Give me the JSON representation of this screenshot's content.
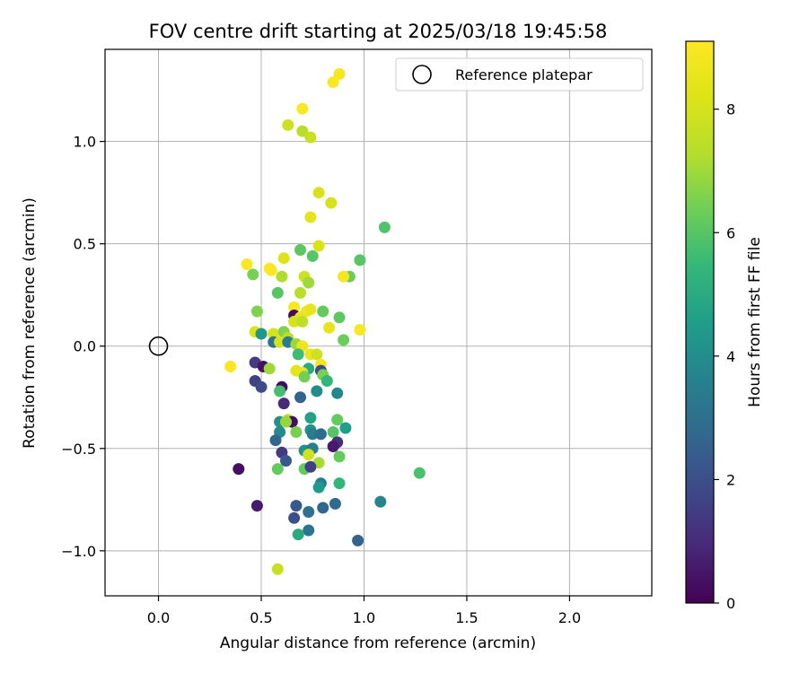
{
  "chart_data": {
    "type": "scatter",
    "title": "FOV centre drift starting at 2025/03/18 19:45:58",
    "xlabel": "Angular distance from reference (arcmin)",
    "ylabel": "Rotation from reference (arcmin)",
    "xlim": [
      -0.26,
      2.4
    ],
    "ylim": [
      -1.22,
      1.45
    ],
    "xticks": [
      0.0,
      0.5,
      1.0,
      1.5,
      2.0
    ],
    "xtick_labels": [
      "0.0",
      "0.5",
      "1.0",
      "1.5",
      "2.0"
    ],
    "yticks": [
      -1.0,
      -0.5,
      0.0,
      0.5,
      1.0
    ],
    "ytick_labels": [
      "−1.0",
      "−0.5",
      "0.0",
      "0.5",
      "1.0"
    ],
    "grid": true,
    "legend": {
      "position": "top-right",
      "entries": [
        "Reference platepar"
      ]
    },
    "reference_point": {
      "x": 0.0,
      "y": 0.0,
      "marker": "open-circle",
      "label": "Reference platepar"
    },
    "colorbar": {
      "label": "Hours from first FF file",
      "range": [
        0,
        9.1
      ],
      "ticks": [
        0,
        2,
        4,
        6,
        8
      ],
      "tick_labels": [
        "0",
        "2",
        "4",
        "6",
        "8"
      ],
      "colormap": "viridis"
    },
    "points": [
      {
        "x": 0.88,
        "y": 1.33,
        "c": 8.9
      },
      {
        "x": 0.85,
        "y": 1.29,
        "c": 9.0
      },
      {
        "x": 0.7,
        "y": 1.16,
        "c": 9.0
      },
      {
        "x": 0.63,
        "y": 1.08,
        "c": 7.8
      },
      {
        "x": 0.7,
        "y": 1.05,
        "c": 7.3
      },
      {
        "x": 0.74,
        "y": 1.02,
        "c": 7.7
      },
      {
        "x": 0.78,
        "y": 0.75,
        "c": 8.0
      },
      {
        "x": 0.84,
        "y": 0.7,
        "c": 8.0
      },
      {
        "x": 0.74,
        "y": 0.63,
        "c": 8.4
      },
      {
        "x": 1.1,
        "y": 0.58,
        "c": 5.9
      },
      {
        "x": 0.78,
        "y": 0.49,
        "c": 8.1
      },
      {
        "x": 0.69,
        "y": 0.47,
        "c": 6.1
      },
      {
        "x": 0.75,
        "y": 0.44,
        "c": 6.0
      },
      {
        "x": 0.61,
        "y": 0.43,
        "c": 8.2
      },
      {
        "x": 0.98,
        "y": 0.42,
        "c": 6.0
      },
      {
        "x": 0.43,
        "y": 0.4,
        "c": 9.0
      },
      {
        "x": 0.54,
        "y": 0.38,
        "c": 9.0
      },
      {
        "x": 0.55,
        "y": 0.37,
        "c": 9.0
      },
      {
        "x": 0.46,
        "y": 0.35,
        "c": 6.5
      },
      {
        "x": 0.6,
        "y": 0.34,
        "c": 7.2
      },
      {
        "x": 0.71,
        "y": 0.34,
        "c": 7.8
      },
      {
        "x": 0.93,
        "y": 0.34,
        "c": 6.3
      },
      {
        "x": 0.9,
        "y": 0.34,
        "c": 8.9
      },
      {
        "x": 0.73,
        "y": 0.31,
        "c": 7.0
      },
      {
        "x": 0.69,
        "y": 0.26,
        "c": 7.4
      },
      {
        "x": 0.58,
        "y": 0.26,
        "c": 6.0
      },
      {
        "x": 0.66,
        "y": 0.19,
        "c": 9.0
      },
      {
        "x": 0.48,
        "y": 0.17,
        "c": 6.6
      },
      {
        "x": 0.8,
        "y": 0.17,
        "c": 6.2
      },
      {
        "x": 0.72,
        "y": 0.17,
        "c": 8.8
      },
      {
        "x": 0.74,
        "y": 0.18,
        "c": 8.5
      },
      {
        "x": 0.66,
        "y": 0.15,
        "c": 0.2
      },
      {
        "x": 0.69,
        "y": 0.14,
        "c": 8.6
      },
      {
        "x": 0.88,
        "y": 0.14,
        "c": 6.1
      },
      {
        "x": 0.66,
        "y": 0.12,
        "c": 8.0
      },
      {
        "x": 0.7,
        "y": 0.12,
        "c": 7.5
      },
      {
        "x": 0.83,
        "y": 0.09,
        "c": 8.5
      },
      {
        "x": 0.98,
        "y": 0.08,
        "c": 9.0
      },
      {
        "x": 0.47,
        "y": 0.07,
        "c": 8.2
      },
      {
        "x": 0.5,
        "y": 0.06,
        "c": 4.3
      },
      {
        "x": 0.56,
        "y": 0.06,
        "c": 8.0
      },
      {
        "x": 0.61,
        "y": 0.07,
        "c": 6.6
      },
      {
        "x": 0.63,
        "y": 0.04,
        "c": 7.5
      },
      {
        "x": 0.9,
        "y": 0.03,
        "c": 6.3
      },
      {
        "x": 0.56,
        "y": 0.02,
        "c": 3.2
      },
      {
        "x": 0.59,
        "y": 0.02,
        "c": 8.0
      },
      {
        "x": 0.63,
        "y": 0.02,
        "c": 3.5
      },
      {
        "x": 0.67,
        "y": 0.01,
        "c": 7.0
      },
      {
        "x": 0.7,
        "y": 0.0,
        "c": 8.7
      },
      {
        "x": 0.74,
        "y": -0.04,
        "c": 8.7
      },
      {
        "x": 0.77,
        "y": -0.04,
        "c": 7.8
      },
      {
        "x": 0.68,
        "y": -0.04,
        "c": 5.6
      },
      {
        "x": 0.35,
        "y": -0.1,
        "c": 9.0
      },
      {
        "x": 0.47,
        "y": -0.08,
        "c": 1.4
      },
      {
        "x": 0.51,
        "y": -0.1,
        "c": 0.4
      },
      {
        "x": 0.54,
        "y": -0.11,
        "c": 7.0
      },
      {
        "x": 0.79,
        "y": -0.09,
        "c": 8.9
      },
      {
        "x": 0.67,
        "y": -0.12,
        "c": 8.4
      },
      {
        "x": 0.73,
        "y": -0.11,
        "c": 5.0
      },
      {
        "x": 0.79,
        "y": -0.12,
        "c": 1.9
      },
      {
        "x": 0.7,
        "y": -0.13,
        "c": 8.6
      },
      {
        "x": 0.8,
        "y": -0.14,
        "c": 6.5
      },
      {
        "x": 0.71,
        "y": -0.15,
        "c": 6.4
      },
      {
        "x": 0.82,
        "y": -0.17,
        "c": 5.4
      },
      {
        "x": 0.47,
        "y": -0.17,
        "c": 1.6
      },
      {
        "x": 0.5,
        "y": -0.2,
        "c": 1.9
      },
      {
        "x": 0.6,
        "y": -0.2,
        "c": 0.2
      },
      {
        "x": 0.59,
        "y": -0.22,
        "c": 5.7
      },
      {
        "x": 0.77,
        "y": -0.22,
        "c": 4.0
      },
      {
        "x": 0.87,
        "y": -0.23,
        "c": 3.8
      },
      {
        "x": 0.69,
        "y": -0.25,
        "c": 2.6
      },
      {
        "x": 0.61,
        "y": -0.28,
        "c": 1.0
      },
      {
        "x": 0.74,
        "y": -0.35,
        "c": 4.7
      },
      {
        "x": 0.59,
        "y": -0.37,
        "c": 4.1
      },
      {
        "x": 0.63,
        "y": -0.36,
        "c": 7.4
      },
      {
        "x": 0.65,
        "y": -0.37,
        "c": 0.3
      },
      {
        "x": 0.62,
        "y": -0.37,
        "c": 6.9
      },
      {
        "x": 0.87,
        "y": -0.36,
        "c": 6.2
      },
      {
        "x": 0.74,
        "y": -0.41,
        "c": 4.2
      },
      {
        "x": 0.91,
        "y": -0.4,
        "c": 4.6
      },
      {
        "x": 0.75,
        "y": -0.43,
        "c": 3.4
      },
      {
        "x": 0.79,
        "y": -0.43,
        "c": 2.9
      },
      {
        "x": 0.85,
        "y": -0.42,
        "c": 6.0
      },
      {
        "x": 0.59,
        "y": -0.42,
        "c": 3.9
      },
      {
        "x": 0.67,
        "y": -0.42,
        "c": 6.5
      },
      {
        "x": 0.57,
        "y": -0.46,
        "c": 2.7
      },
      {
        "x": 0.87,
        "y": -0.47,
        "c": 8.9
      },
      {
        "x": 0.87,
        "y": -0.47,
        "c": 1.1
      },
      {
        "x": 0.85,
        "y": -0.49,
        "c": 0.6
      },
      {
        "x": 0.73,
        "y": -0.51,
        "c": 2.6
      },
      {
        "x": 0.71,
        "y": -0.51,
        "c": 4.1
      },
      {
        "x": 0.75,
        "y": -0.5,
        "c": 3.5
      },
      {
        "x": 0.6,
        "y": -0.52,
        "c": 1.4
      },
      {
        "x": 0.73,
        "y": -0.53,
        "c": 7.9
      },
      {
        "x": 0.88,
        "y": -0.54,
        "c": 6.2
      },
      {
        "x": 0.62,
        "y": -0.56,
        "c": 2.3
      },
      {
        "x": 0.78,
        "y": -0.57,
        "c": 7.1
      },
      {
        "x": 0.58,
        "y": -0.6,
        "c": 6.2
      },
      {
        "x": 0.71,
        "y": -0.6,
        "c": 6.2
      },
      {
        "x": 0.74,
        "y": -0.59,
        "c": 1.6
      },
      {
        "x": 0.39,
        "y": -0.6,
        "c": 0.3
      },
      {
        "x": 1.27,
        "y": -0.62,
        "c": 5.8
      },
      {
        "x": 0.79,
        "y": -0.67,
        "c": 3.5
      },
      {
        "x": 0.88,
        "y": -0.67,
        "c": 5.4
      },
      {
        "x": 0.78,
        "y": -0.69,
        "c": 4.5
      },
      {
        "x": 1.08,
        "y": -0.76,
        "c": 3.7
      },
      {
        "x": 0.86,
        "y": -0.77,
        "c": 2.8
      },
      {
        "x": 0.48,
        "y": -0.78,
        "c": 0.6
      },
      {
        "x": 0.67,
        "y": -0.78,
        "c": 2.3
      },
      {
        "x": 0.8,
        "y": -0.79,
        "c": 2.7
      },
      {
        "x": 0.73,
        "y": -0.81,
        "c": 3.0
      },
      {
        "x": 0.66,
        "y": -0.84,
        "c": 2.0
      },
      {
        "x": 0.73,
        "y": -0.9,
        "c": 3.2
      },
      {
        "x": 0.68,
        "y": -0.92,
        "c": 5.0
      },
      {
        "x": 0.97,
        "y": -0.95,
        "c": 2.6
      },
      {
        "x": 0.58,
        "y": -1.09,
        "c": 7.7
      }
    ]
  }
}
